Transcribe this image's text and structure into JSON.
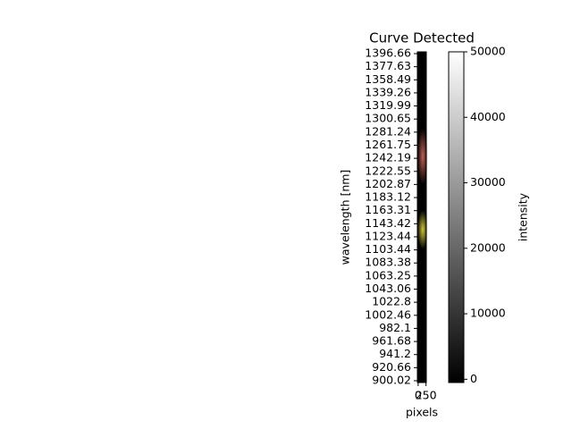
{
  "chart_data": {
    "type": "image",
    "title": "Curve Detected",
    "x_label": "pixels",
    "y_label": "wavelength [nm]",
    "xlim": [
      -25,
      260
    ],
    "xticks": [
      0,
      250
    ],
    "y_categories": [
      900.02,
      920.66,
      941.2,
      961.68,
      982.1,
      1002.46,
      1022.8,
      1043.06,
      1063.25,
      1083.38,
      1103.44,
      1123.44,
      1143.42,
      1163.31,
      1183.12,
      1202.87,
      1222.55,
      1242.19,
      1261.75,
      1281.24,
      1300.65,
      1319.99,
      1339.26,
      1358.49,
      1377.63,
      1396.66
    ],
    "colorbar": {
      "label": "intensity",
      "lim": [
        -500,
        50000
      ],
      "ticks": [
        0,
        10000,
        20000,
        30000,
        40000,
        50000
      ]
    }
  }
}
